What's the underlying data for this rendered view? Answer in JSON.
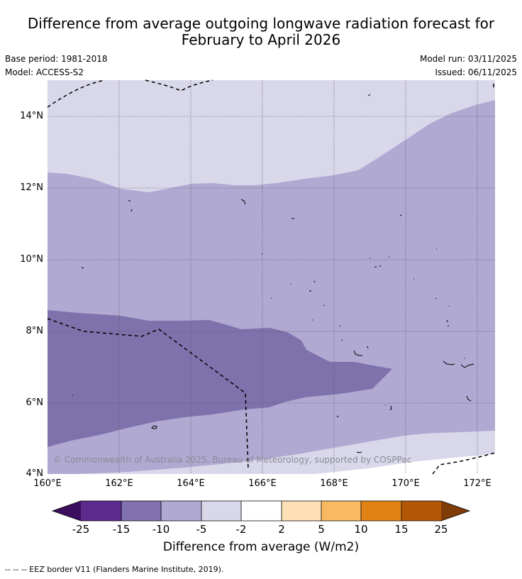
{
  "header": {
    "title_line1": "Difference from average outgoing longwave radiation forecast for",
    "title_line2": "February to April 2026",
    "base_period": "Base period: 1981-2018",
    "model": "Model: ACCESS-S2",
    "model_run": "Model run: 03/11/2025",
    "issued": "Issued: 06/11/2025"
  },
  "map": {
    "y_labels": [
      "14°N",
      "12°N",
      "10°N",
      "8°N",
      "6°N",
      "4°N"
    ],
    "x_labels": [
      "160°E",
      "162°E",
      "164°E",
      "166°E",
      "168°E",
      "170°E",
      "172°E"
    ],
    "copyright": "© Commonwealth of Australia 2025, Bureau of Meteorology, supported by COSPPac",
    "colors": {
      "band_minus_15_to_minus_10": "#7f71ac",
      "band_minus_10_to_minus_5": "#b0a9d2",
      "band_minus_5_to_minus_2": "#d9d8eb",
      "band_minus_2_to_2": "#ffffff"
    }
  },
  "colorbar": {
    "ticks": [
      "-25",
      "-15",
      "-10",
      "-5",
      "-2",
      "2",
      "5",
      "10",
      "15",
      "25"
    ],
    "colors": [
      "#3b0f5e",
      "#5a2a8d",
      "#8171ae",
      "#b0a9d2",
      "#d9d8eb",
      "#ffffff",
      "#fee0b6",
      "#fbb862",
      "#e08214",
      "#b35806",
      "#7f3b08"
    ],
    "label": "Difference from average (W/m2)"
  },
  "footnote": "--  --  -- EEZ border V11 (Flanders Marine Institute, 2019)."
}
